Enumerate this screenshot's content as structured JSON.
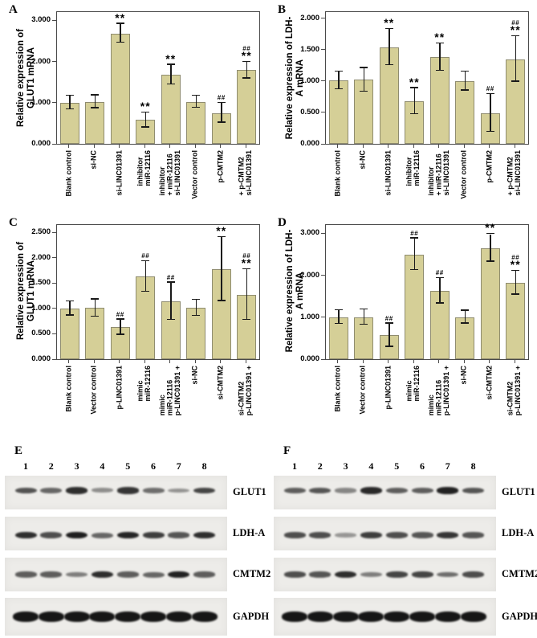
{
  "colors": {
    "bar_fill": "#d5cf97",
    "bar_border": "#8f8c6f",
    "plot_border": "#4a4a4a",
    "error_bar": "#1a1a1a",
    "blot_strip_bg": "#edece9",
    "blot_band": "#161616"
  },
  "chart_data": [
    {
      "type": "bar",
      "panel": "A",
      "ylabel": "Relative expression of\nGLUT1 mRNA",
      "yticks": [
        0,
        1,
        2,
        3
      ],
      "tick_decimals": 3,
      "ymax": 3.2,
      "grid": false,
      "legend": null,
      "bars": [
        {
          "label": [
            "Blank control"
          ],
          "value": 1.0,
          "err": 0.17,
          "sig": []
        },
        {
          "label": [
            "si-NC"
          ],
          "value": 1.02,
          "err": 0.16,
          "sig": []
        },
        {
          "label": [
            "si-LINC01391"
          ],
          "value": 2.68,
          "err": 0.23,
          "sig": [
            "**"
          ]
        },
        {
          "label": [
            "miR-12116",
            "inhibitor"
          ],
          "value": 0.58,
          "err": 0.18,
          "sig": [
            "**"
          ]
        },
        {
          "label": [
            "si-LINC01391",
            "+ miR-12116",
            "inhibitor"
          ],
          "value": 1.68,
          "err": 0.24,
          "sig": [
            "**"
          ]
        },
        {
          "label": [
            "Vector control"
          ],
          "value": 1.02,
          "err": 0.15,
          "sig": []
        },
        {
          "label": [
            "p-CMTM2"
          ],
          "value": 0.75,
          "err": 0.24,
          "sig": [
            "##"
          ]
        },
        {
          "label": [
            "si-LINC01391",
            "+ p-CMTM2"
          ],
          "value": 1.79,
          "err": 0.2,
          "sig": [
            "##",
            "**"
          ]
        }
      ]
    },
    {
      "type": "bar",
      "panel": "B",
      "ylabel": "Relative expression of LDH-\nA mRNA",
      "yticks": [
        0,
        0.5,
        1,
        1.5,
        2
      ],
      "tick_decimals": 3,
      "ymax": 2.1,
      "grid": false,
      "legend": null,
      "bars": [
        {
          "label": [
            "Blank control"
          ],
          "value": 1.01,
          "err": 0.14,
          "sig": []
        },
        {
          "label": [
            "si-NC"
          ],
          "value": 1.02,
          "err": 0.19,
          "sig": []
        },
        {
          "label": [
            "si-LINC01391"
          ],
          "value": 1.54,
          "err": 0.29,
          "sig": [
            "**"
          ]
        },
        {
          "label": [
            "miR-12116",
            "inhibitor"
          ],
          "value": 0.68,
          "err": 0.21,
          "sig": [
            "**"
          ]
        },
        {
          "label": [
            "si-LINC01391",
            "+ miR-12116",
            "inhibitor"
          ],
          "value": 1.38,
          "err": 0.22,
          "sig": [
            "**"
          ]
        },
        {
          "label": [
            "Vector control"
          ],
          "value": 1.0,
          "err": 0.15,
          "sig": []
        },
        {
          "label": [
            "p-CMTM2"
          ],
          "value": 0.49,
          "err": 0.3,
          "sig": [
            "##"
          ]
        },
        {
          "label": [
            "si-LINC01391",
            "+ p-CMTM2"
          ],
          "value": 1.35,
          "err": 0.36,
          "sig": [
            "##",
            "**"
          ]
        }
      ]
    },
    {
      "type": "bar",
      "panel": "C",
      "ylabel": "Relative expression of\nGLUT1 mRNA",
      "yticks": [
        0,
        0.5,
        1,
        1.5,
        2,
        2.5
      ],
      "tick_decimals": 3,
      "ymax": 2.65,
      "grid": false,
      "legend": null,
      "bars": [
        {
          "label": [
            "Blank control"
          ],
          "value": 1.0,
          "err": 0.14,
          "sig": []
        },
        {
          "label": [
            "Vector control"
          ],
          "value": 1.01,
          "err": 0.17,
          "sig": []
        },
        {
          "label": [
            "p-LINC01391"
          ],
          "value": 0.63,
          "err": 0.15,
          "sig": [
            "##"
          ]
        },
        {
          "label": [
            "miR-12116",
            "mimic"
          ],
          "value": 1.63,
          "err": 0.3,
          "sig": [
            "##"
          ]
        },
        {
          "label": [
            "p-LINC01391 +",
            "miR-12116",
            "mimic"
          ],
          "value": 1.14,
          "err": 0.37,
          "sig": [
            "##"
          ]
        },
        {
          "label": [
            "si-NC"
          ],
          "value": 1.01,
          "err": 0.16,
          "sig": []
        },
        {
          "label": [
            "si-CMTM2"
          ],
          "value": 1.78,
          "err": 0.63,
          "sig": [
            "**"
          ]
        },
        {
          "label": [
            "p-LINC01391 +",
            "si-CMTM2"
          ],
          "value": 1.27,
          "err": 0.5,
          "sig": [
            "##",
            "**"
          ]
        }
      ]
    },
    {
      "type": "bar",
      "panel": "D",
      "ylabel": "Relative expression of LDH-\nA mRNA",
      "yticks": [
        0,
        1,
        2,
        3
      ],
      "tick_decimals": 3,
      "ymax": 3.2,
      "grid": false,
      "legend": null,
      "bars": [
        {
          "label": [
            "Blank control"
          ],
          "value": 1.0,
          "err": 0.16,
          "sig": []
        },
        {
          "label": [
            "Vector control"
          ],
          "value": 1.0,
          "err": 0.18,
          "sig": []
        },
        {
          "label": [
            "p-LINC01391"
          ],
          "value": 0.57,
          "err": 0.28,
          "sig": [
            "##"
          ]
        },
        {
          "label": [
            "miR-12116",
            "mimic"
          ],
          "value": 2.5,
          "err": 0.38,
          "sig": [
            "##"
          ]
        },
        {
          "label": [
            "p-LINC01391 +",
            "miR-12116",
            "mimic"
          ],
          "value": 1.63,
          "err": 0.3,
          "sig": [
            "##"
          ]
        },
        {
          "label": [
            "si-NC"
          ],
          "value": 1.0,
          "err": 0.15,
          "sig": []
        },
        {
          "label": [
            "si-CMTM2"
          ],
          "value": 2.65,
          "err": 0.33,
          "sig": [
            "**"
          ]
        },
        {
          "label": [
            "p-LINC01391 +",
            "si-CMTM2"
          ],
          "value": 1.82,
          "err": 0.28,
          "sig": [
            "##",
            "**"
          ]
        }
      ]
    }
  ],
  "blots": [
    {
      "panel": "E",
      "lanes": [
        "1",
        "2",
        "3",
        "4",
        "5",
        "6",
        "7",
        "8"
      ],
      "rows": [
        {
          "label": "GLUT1",
          "intensities": [
            0.62,
            0.5,
            0.85,
            0.25,
            0.8,
            0.45,
            0.22,
            0.7
          ]
        },
        {
          "label": "LDH-A",
          "intensities": [
            0.85,
            0.65,
            0.95,
            0.5,
            0.9,
            0.75,
            0.6,
            0.85
          ]
        },
        {
          "label": "CMTM2",
          "intensities": [
            0.55,
            0.55,
            0.35,
            0.85,
            0.55,
            0.5,
            0.92,
            0.55
          ]
        },
        {
          "label": "GAPDH",
          "intensities": [
            1,
            1,
            1,
            1,
            1,
            1,
            1,
            1
          ]
        }
      ]
    },
    {
      "panel": "F",
      "lanes": [
        "1",
        "2",
        "3",
        "4",
        "5",
        "6",
        "7",
        "8"
      ],
      "rows": [
        {
          "label": "GLUT1",
          "intensities": [
            0.55,
            0.6,
            0.3,
            0.88,
            0.55,
            0.55,
            0.92,
            0.6
          ]
        },
        {
          "label": "LDH-A",
          "intensities": [
            0.65,
            0.65,
            0.2,
            0.75,
            0.65,
            0.6,
            0.8,
            0.6
          ]
        },
        {
          "label": "CMTM2",
          "intensities": [
            0.65,
            0.6,
            0.85,
            0.35,
            0.7,
            0.7,
            0.45,
            0.65
          ]
        },
        {
          "label": "GAPDH",
          "intensities": [
            1,
            1,
            1,
            1,
            1,
            1,
            1,
            1
          ]
        }
      ]
    }
  ]
}
